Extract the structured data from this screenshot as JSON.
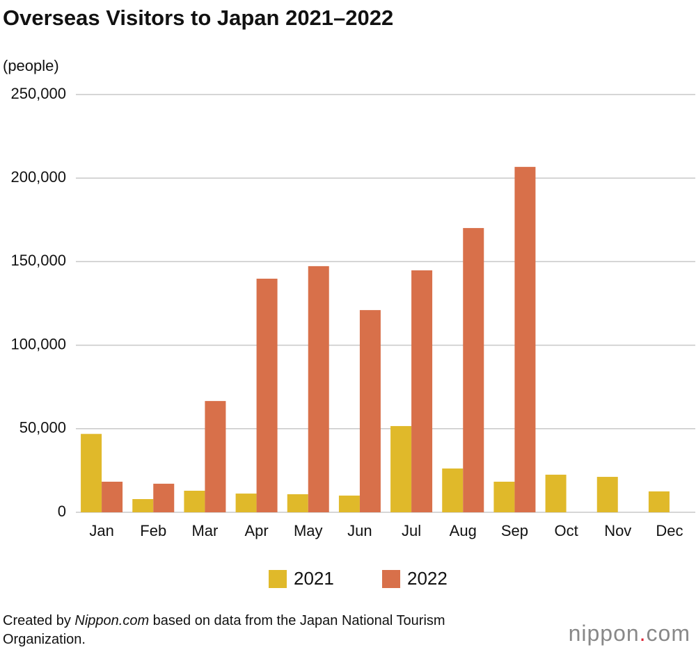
{
  "chart_data": {
    "type": "bar",
    "title": "Overseas Visitors to Japan 2021–2022",
    "y_label": "(people)",
    "categories": [
      "Jan",
      "Feb",
      "Mar",
      "Apr",
      "May",
      "Jun",
      "Jul",
      "Aug",
      "Sep",
      "Oct",
      "Nov",
      "Dec"
    ],
    "series": [
      {
        "name": "2021",
        "color": "#e0b92a",
        "values": [
          46900,
          7900,
          12900,
          11200,
          10800,
          10000,
          51600,
          26200,
          18300,
          22500,
          21200,
          12500
        ]
      },
      {
        "name": "2022",
        "color": "#d8704a",
        "values": [
          18300,
          17100,
          66600,
          139800,
          147300,
          121000,
          144800,
          170100,
          206700,
          null,
          null,
          null
        ]
      }
    ],
    "ylim": [
      0,
      250000
    ],
    "yticks": [
      0,
      {
        "value": 50000,
        "label": "50,000"
      },
      {
        "value": 100000,
        "label": "100,000"
      },
      {
        "value": 150000,
        "label": "150,000"
      },
      {
        "value": 200000,
        "label": "200,000"
      },
      {
        "value": 250000,
        "label": "250,000"
      }
    ],
    "grid": true
  },
  "footer": {
    "source": [
      "Created by ",
      "Nippon.com",
      " based on data from the Japan National Tourism Organization."
    ],
    "logo": [
      "nippon",
      ".",
      "com"
    ]
  }
}
